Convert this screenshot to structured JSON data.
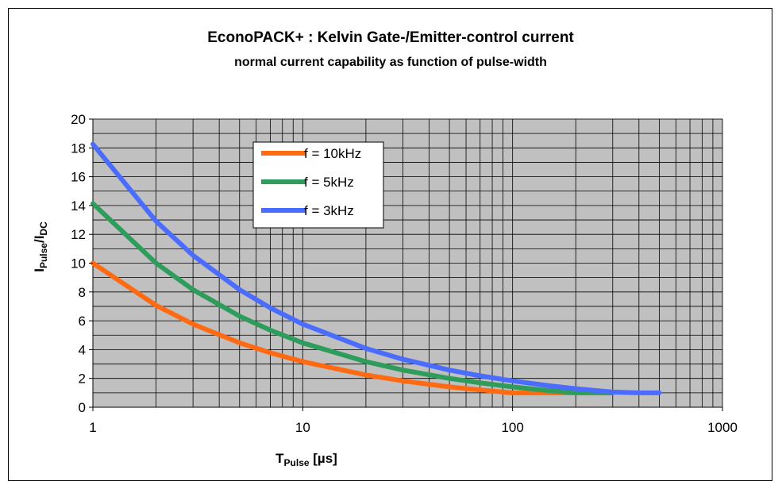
{
  "chart_data": {
    "type": "line",
    "title": "EconoPACK+ : Kelvin Gate-/Emitter-control current",
    "subtitle": "normal current capability as function of  pulse-width",
    "xlabel": {
      "main": "T",
      "sub": "Pulse",
      "rest": " [µs]"
    },
    "ylabel": {
      "main": "I",
      "sub1": "Pulse",
      "mid": "/I",
      "sub2": "DC"
    },
    "x_scale": "log",
    "xlim": [
      1,
      1000
    ],
    "ylim": [
      0,
      20
    ],
    "x_ticks": [
      "1",
      "10",
      "100",
      "1000"
    ],
    "y_ticks": [
      "0",
      "2",
      "4",
      "6",
      "8",
      "10",
      "12",
      "14",
      "16",
      "18",
      "20"
    ],
    "grid": true,
    "legend_position": "top-center",
    "series": [
      {
        "name": "f = 10kHz",
        "color": "#ff6a13",
        "x": [
          1,
          2,
          3,
          5,
          7,
          10,
          20,
          30,
          50,
          70,
          100,
          150,
          200
        ],
        "y": [
          10.0,
          7.07,
          5.77,
          4.47,
          3.78,
          3.16,
          2.24,
          1.83,
          1.41,
          1.2,
          1.0,
          1.0,
          1.0
        ]
      },
      {
        "name": "f = 5kHz",
        "color": "#2e9c5a",
        "x": [
          1,
          2,
          3,
          5,
          7,
          10,
          20,
          30,
          50,
          70,
          100,
          150,
          200,
          300
        ],
        "y": [
          14.14,
          10.0,
          8.16,
          6.32,
          5.35,
          4.47,
          3.16,
          2.58,
          2.0,
          1.69,
          1.41,
          1.15,
          1.0,
          1.0
        ]
      },
      {
        "name": "f = 3kHz",
        "color": "#4a6cff",
        "x": [
          1,
          2,
          3,
          5,
          7,
          10,
          20,
          30,
          50,
          70,
          100,
          150,
          200,
          300,
          400,
          500
        ],
        "y": [
          18.26,
          12.91,
          10.54,
          8.16,
          6.9,
          5.77,
          4.08,
          3.33,
          2.58,
          2.18,
          1.83,
          1.49,
          1.29,
          1.05,
          1.0,
          1.0
        ]
      }
    ]
  }
}
